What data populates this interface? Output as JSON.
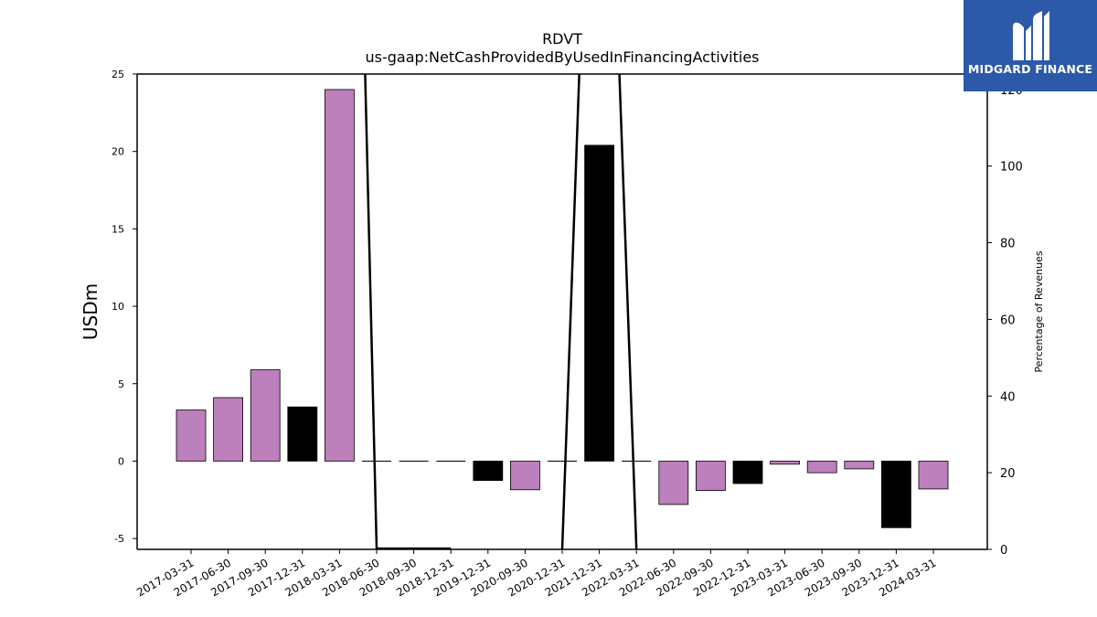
{
  "chart_data": {
    "type": "bar",
    "title": "RDVT",
    "subtitle": "us-gaap:NetCashProvidedByUsedInFinancingActivities",
    "ylabel": "USDm",
    "y2label": "Percentage of Revenues",
    "ylim": [
      -5.7,
      25
    ],
    "y2lim": [
      0,
      124
    ],
    "yticks": [
      -5,
      0,
      5,
      10,
      15,
      20,
      25
    ],
    "y2ticks": [
      0,
      20,
      40,
      60,
      80,
      100,
      120
    ],
    "categories": [
      "2017-03-31",
      "2017-06-30",
      "2017-09-30",
      "2017-12-31",
      "2018-03-31",
      "2018-06-30",
      "2018-09-30",
      "2018-12-31",
      "2019-12-31",
      "2020-09-30",
      "2020-12-31",
      "2021-12-31",
      "2022-03-31",
      "2022-06-30",
      "2022-09-30",
      "2022-12-31",
      "2023-03-31",
      "2023-06-30",
      "2023-09-30",
      "2023-12-31",
      "2024-03-31"
    ],
    "values": [
      3.3,
      4.1,
      5.9,
      3.5,
      24.0,
      0.0,
      0.0,
      0.0,
      -1.25,
      -1.85,
      0.0,
      20.4,
      0.0,
      -2.8,
      -1.9,
      -1.45,
      -0.2,
      -0.75,
      -0.5,
      -4.3,
      -1.8
    ],
    "bar_colors": [
      "#bc80bd",
      "#bc80bd",
      "#bc80bd",
      "#000000",
      "#bc80bd",
      "#bc80bd",
      "#bc80bd",
      "#bc80bd",
      "#000000",
      "#bc80bd",
      "#bc80bd",
      "#000000",
      "#bc80bd",
      "#bc80bd",
      "#bc80bd",
      "#000000",
      "#bc80bd",
      "#bc80bd",
      "#bc80bd",
      "#000000",
      "#bc80bd"
    ],
    "line_series": {
      "values": [
        null,
        null,
        null,
        null,
        400,
        0.2,
        0.2,
        0.2,
        null,
        null,
        0,
        270,
        0,
        null,
        null,
        null,
        null,
        null,
        null,
        null,
        null
      ]
    },
    "colors": {
      "bar": "#bc80bd",
      "bar_alt": "#000000",
      "line": "#000000"
    },
    "grid": false
  },
  "logo": {
    "text": "MIDGARD FINANCE",
    "background": "#2c5aa8"
  }
}
